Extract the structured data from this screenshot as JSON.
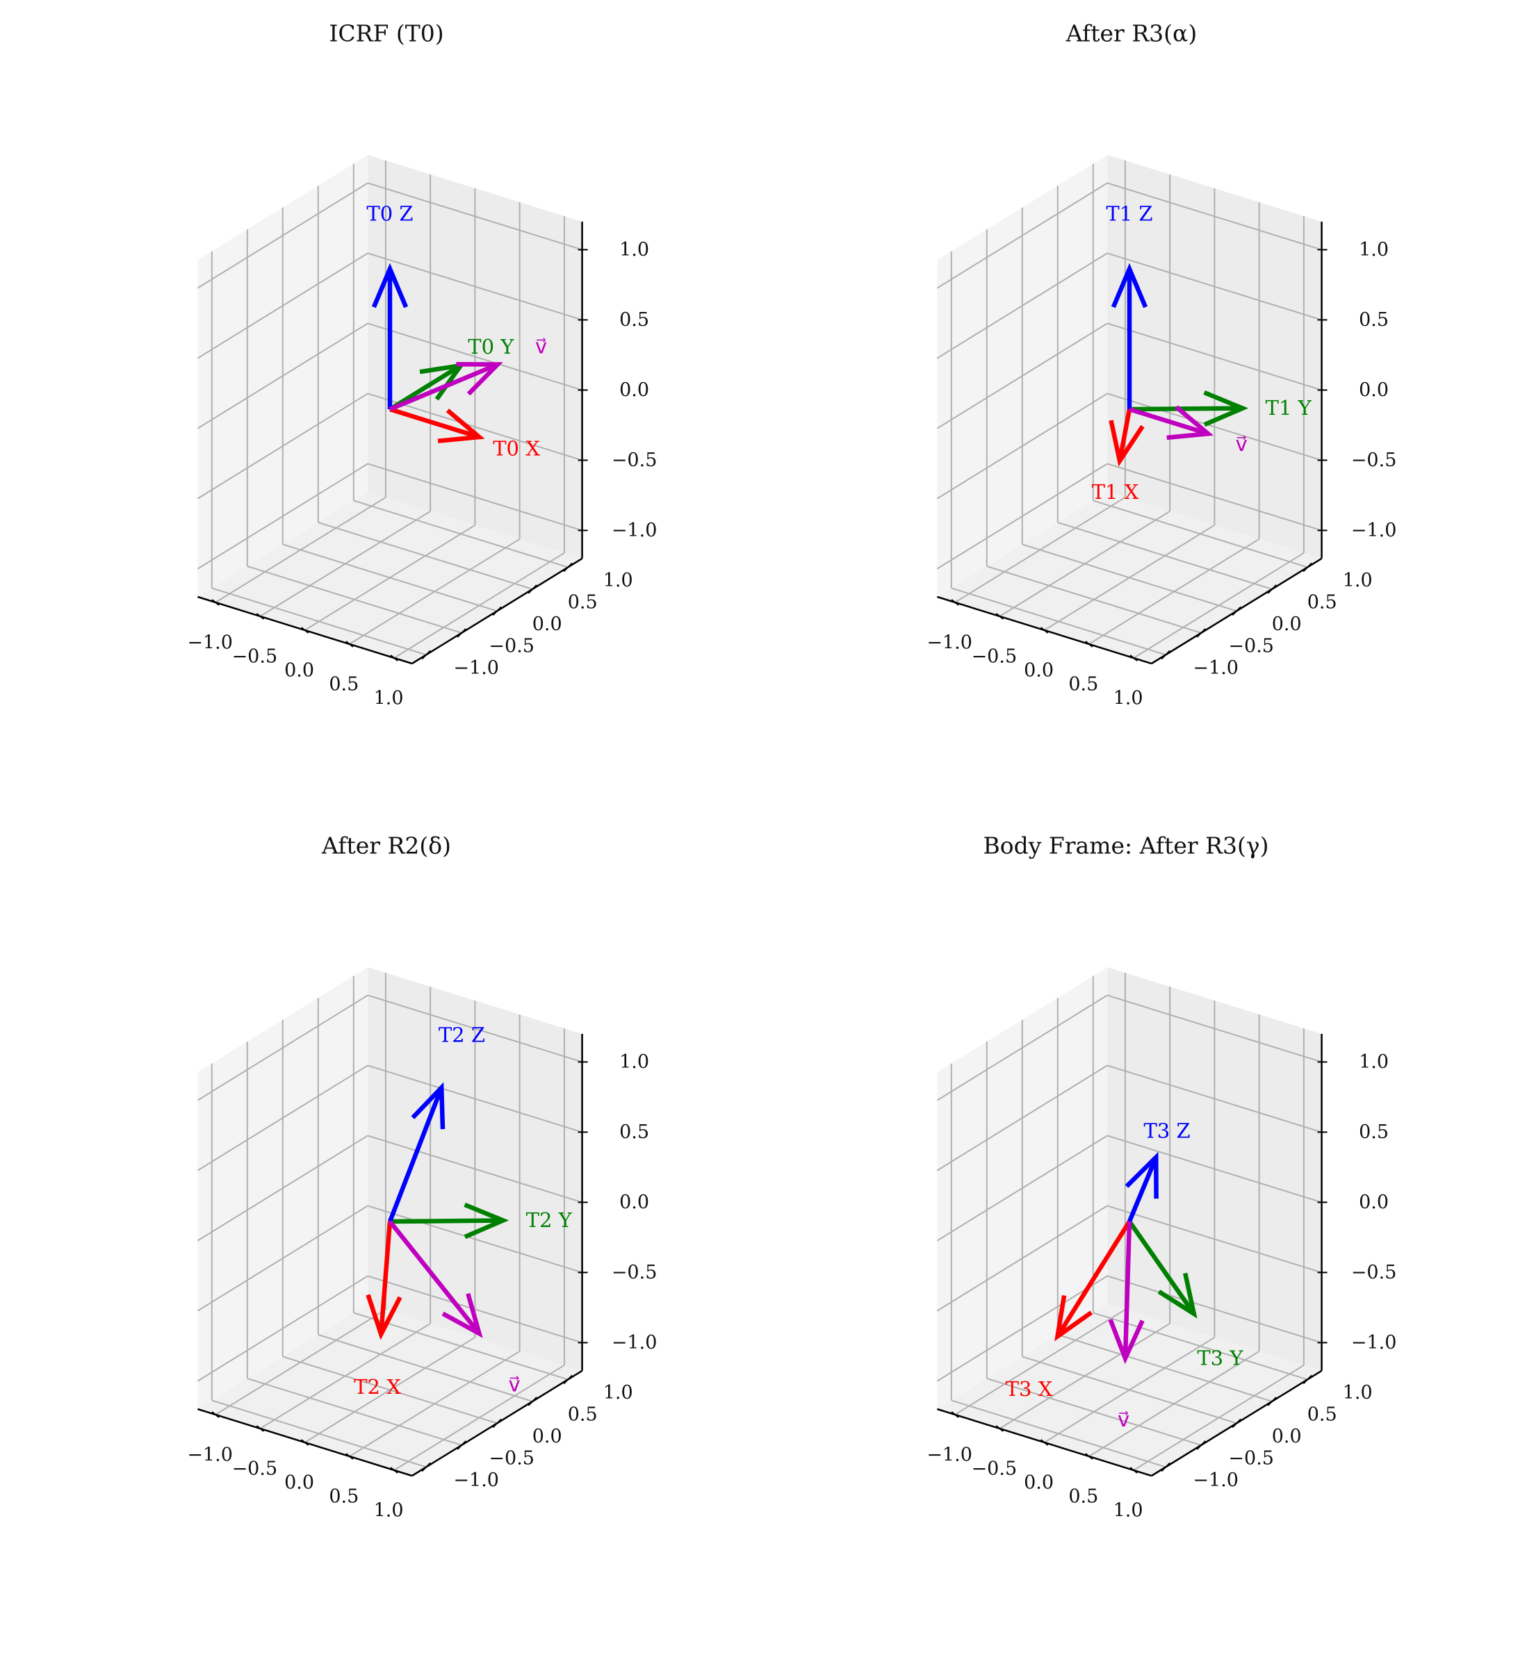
{
  "chart_data": [
    {
      "type": "quiver3d",
      "title": "ICRF (T0)",
      "xlim": [
        -1.2,
        1.2
      ],
      "ylim": [
        -1.2,
        1.2
      ],
      "zlim": [
        -1.2,
        1.2
      ],
      "xticks": [
        "−1.0",
        "−0.5",
        "0.0",
        "0.5",
        "1.0"
      ],
      "yticks": [
        "−1.0",
        "−0.5",
        "0.0",
        "0.5",
        "1.0"
      ],
      "zticks": [
        "−1.0",
        "−0.5",
        "0.0",
        "0.5",
        "1.0"
      ],
      "grid": true,
      "vectors": [
        {
          "label": "T0 X",
          "color": "#ff0000",
          "vec": [
            1.0,
            0.0,
            0.0
          ]
        },
        {
          "label": "T0 Y",
          "color": "#008000",
          "vec": [
            0.0,
            1.0,
            0.0
          ]
        },
        {
          "label": "T0 Z",
          "color": "#0000ff",
          "vec": [
            0.0,
            0.0,
            1.0
          ]
        },
        {
          "label": "v⃗",
          "color": "#bf00bf",
          "vec": [
            0.77,
            0.55,
            0.3
          ]
        }
      ]
    },
    {
      "type": "quiver3d",
      "title": "After R3(α)",
      "xlim": [
        -1.2,
        1.2
      ],
      "ylim": [
        -1.2,
        1.2
      ],
      "zlim": [
        -1.2,
        1.2
      ],
      "xticks": [
        "−1.0",
        "−0.5",
        "0.0",
        "0.5",
        "1.0"
      ],
      "yticks": [
        "−1.0",
        "−0.5",
        "0.0",
        "0.5",
        "1.0"
      ],
      "zticks": [
        "−1.0",
        "−0.5",
        "0.0",
        "0.5",
        "1.0"
      ],
      "grid": true,
      "vectors": [
        {
          "label": "T1 X",
          "color": "#ff0000",
          "vec": [
            0.55,
            -0.83,
            0.0
          ]
        },
        {
          "label": "T1 Y",
          "color": "#008000",
          "vec": [
            0.83,
            0.55,
            0.0
          ]
        },
        {
          "label": "T1 Z",
          "color": "#0000ff",
          "vec": [
            0.0,
            0.0,
            1.0
          ]
        },
        {
          "label": "v⃗",
          "color": "#bf00bf",
          "vec": [
            0.88,
            0.0,
            0.0
          ]
        }
      ]
    },
    {
      "type": "quiver3d",
      "title": "After R2(δ)",
      "xlim": [
        -1.2,
        1.2
      ],
      "ylim": [
        -1.2,
        1.2
      ],
      "zlim": [
        -1.2,
        1.2
      ],
      "xticks": [
        "−1.0",
        "−0.5",
        "0.0",
        "0.5",
        "1.0"
      ],
      "yticks": [
        "−1.0",
        "−0.5",
        "0.0",
        "0.5",
        "1.0"
      ],
      "zticks": [
        "−1.0",
        "−0.5",
        "0.0",
        "0.5",
        "1.0"
      ],
      "grid": true,
      "vectors": [
        {
          "label": "T2 X",
          "color": "#ff0000",
          "vec": [
            0.48,
            -0.73,
            -0.48
          ]
        },
        {
          "label": "T2 Y",
          "color": "#008000",
          "vec": [
            0.83,
            0.55,
            0.0
          ]
        },
        {
          "label": "T2 Z",
          "color": "#0000ff",
          "vec": [
            0.26,
            0.4,
            0.88
          ]
        },
        {
          "label": "v⃗",
          "color": "#bf00bf",
          "vec": [
            1.0,
            0.0,
            -0.6
          ]
        }
      ]
    },
    {
      "type": "quiver3d",
      "title": "Body Frame: After R3(γ)",
      "xlim": [
        -1.2,
        1.2
      ],
      "ylim": [
        -1.2,
        1.2
      ],
      "zlim": [
        -1.2,
        1.2
      ],
      "xticks": [
        "−1.0",
        "−0.5",
        "0.0",
        "0.5",
        "1.0"
      ],
      "yticks": [
        "−1.0",
        "−0.5",
        "0.0",
        "0.5",
        "1.0"
      ],
      "zticks": [
        "−1.0",
        "−0.5",
        "0.0",
        "0.5",
        "1.0"
      ],
      "grid": true,
      "vectors": [
        {
          "label": "T3 X",
          "color": "#ff0000",
          "vec": [
            -0.25,
            -0.7,
            -0.65
          ]
        },
        {
          "label": "T3 Y",
          "color": "#008000",
          "vec": [
            1.0,
            -0.35,
            -0.35
          ]
        },
        {
          "label": "T3 Z",
          "color": "#0000ff",
          "vec": [
            0.1,
            0.25,
            0.4
          ]
        },
        {
          "label": "v⃗",
          "color": "#bf00bf",
          "vec": [
            0.35,
            -0.5,
            -0.75
          ]
        }
      ]
    }
  ]
}
